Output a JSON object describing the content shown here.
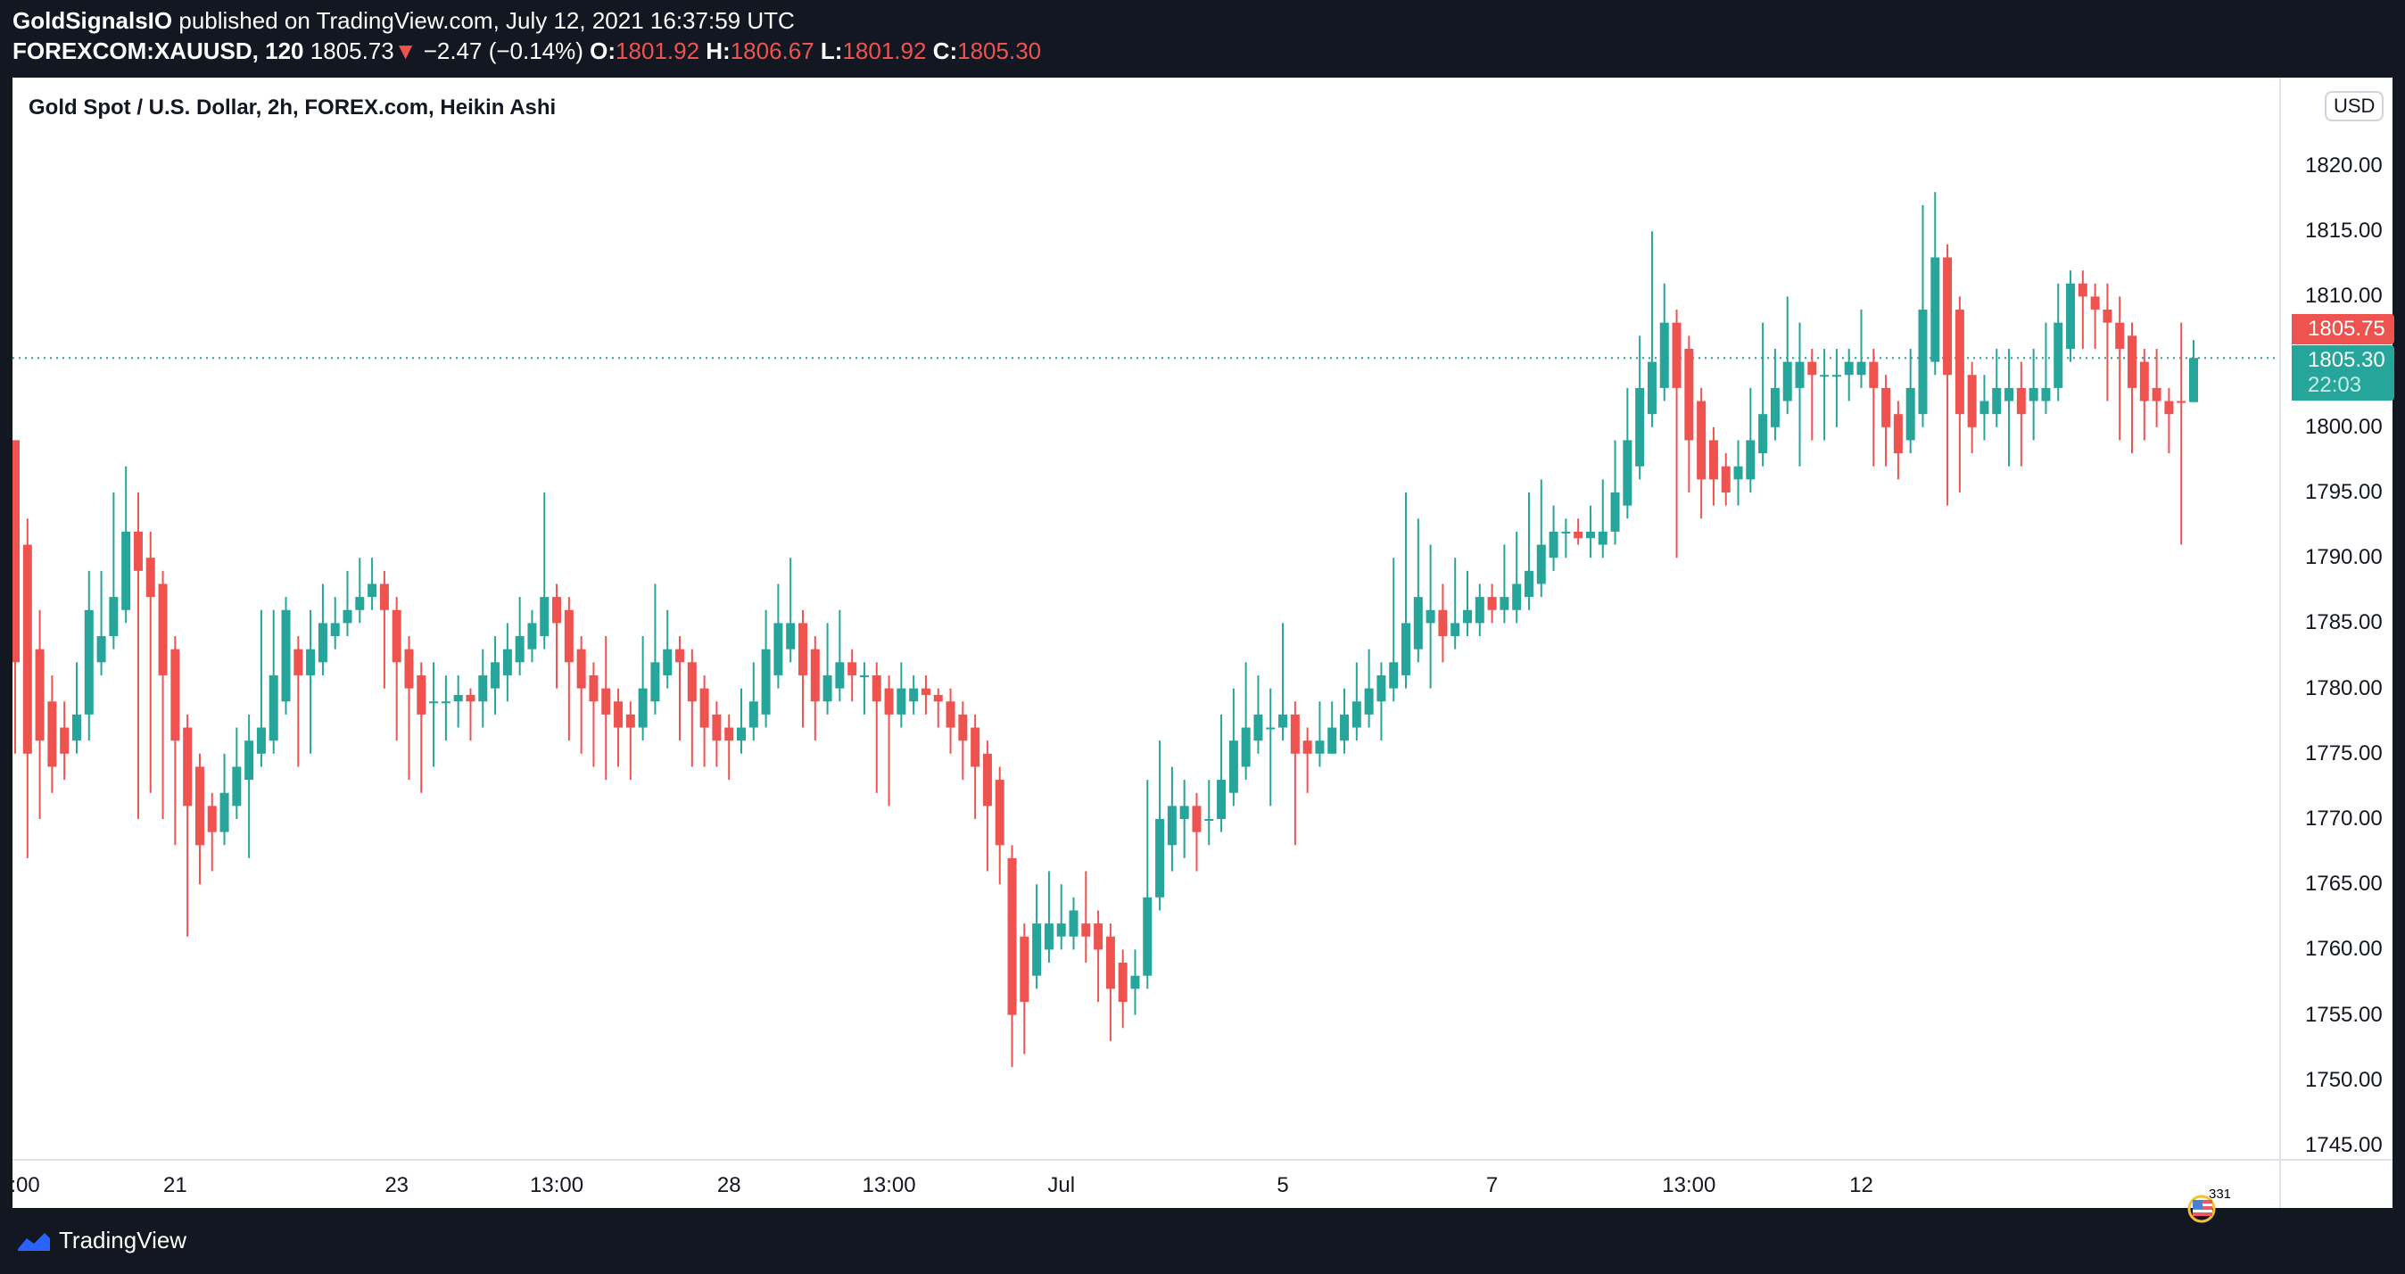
{
  "header": {
    "author": "GoldSignalsIO",
    "published": "published on TradingView.com, July 12, 2021 16:37:59 UTC",
    "symbol": "FOREXCOM:XAUUSD, 120",
    "last": "1805.73",
    "change": "−2.47 (−0.14%)",
    "o_label": "O:",
    "o": "1801.92",
    "h_label": "H:",
    "h": "1806.67",
    "l_label": "L:",
    "l": "1801.92",
    "c_label": "C:",
    "c": "1805.30"
  },
  "chart_title": "Gold Spot / U.S. Dollar, 2h, FOREX.com, Heikin Ashi",
  "currency": "USD",
  "price_boxes": {
    "last": "1805.75",
    "current": "1805.30",
    "countdown": "22:03"
  },
  "event_badge": "331",
  "footer": {
    "brand": "TradingView"
  },
  "colors": {
    "up": "#26a69a",
    "down": "#ef5350",
    "background": "#131722"
  },
  "chart_data": {
    "type": "candlestick",
    "title": "Gold Spot / U.S. Dollar, 2h, FOREX.com, Heikin Ashi",
    "ylim": [
      1743,
      1826
    ],
    "y_ticks": [
      "1820.00",
      "1815.00",
      "1810.00",
      "1800.00",
      "1795.00",
      "1790.00",
      "1785.00",
      "1780.00",
      "1775.00",
      "1770.00",
      "1765.00",
      "1760.00",
      "1755.00",
      "1750.00",
      "1745.00"
    ],
    "y_tick_values": [
      1820,
      1815,
      1810,
      1800,
      1795,
      1790,
      1785,
      1780,
      1775,
      1770,
      1765,
      1760,
      1755,
      1750,
      1745
    ],
    "x_ticks": [
      ":00",
      "21",
      "23",
      "13:00",
      "28",
      "13:00",
      "Jul",
      "5",
      "7",
      "13:00",
      "12"
    ],
    "x_tick_candle_index": [
      0,
      13,
      31,
      44,
      58,
      71,
      85,
      103,
      120,
      136,
      150
    ],
    "current_price": 1805.3,
    "candles": [
      [
        1799,
        1799,
        1775,
        1782
      ],
      [
        1791,
        1793,
        1767,
        1775
      ],
      [
        1783,
        1786,
        1770,
        1776
      ],
      [
        1779,
        1781,
        1772,
        1774
      ],
      [
        1777,
        1779,
        1773,
        1775
      ],
      [
        1776,
        1782,
        1775,
        1778
      ],
      [
        1778,
        1789,
        1776,
        1786
      ],
      [
        1782,
        1789,
        1781,
        1784
      ],
      [
        1784,
        1795,
        1783,
        1787
      ],
      [
        1786,
        1797,
        1785,
        1792
      ],
      [
        1792,
        1795,
        1770,
        1789
      ],
      [
        1790,
        1792,
        1772,
        1787
      ],
      [
        1788,
        1789,
        1770,
        1781
      ],
      [
        1783,
        1784,
        1768,
        1776
      ],
      [
        1777,
        1778,
        1761,
        1771
      ],
      [
        1774,
        1775,
        1765,
        1768
      ],
      [
        1771,
        1772,
        1766,
        1769
      ],
      [
        1769,
        1775,
        1768,
        1772
      ],
      [
        1771,
        1777,
        1770,
        1774
      ],
      [
        1773,
        1778,
        1767,
        1776
      ],
      [
        1775,
        1786,
        1774,
        1777
      ],
      [
        1776,
        1786,
        1775,
        1781
      ],
      [
        1779,
        1787,
        1778,
        1786
      ],
      [
        1783,
        1784,
        1774,
        1781
      ],
      [
        1781,
        1786,
        1775,
        1783
      ],
      [
        1782,
        1788,
        1781,
        1785
      ],
      [
        1784,
        1787,
        1783,
        1785
      ],
      [
        1785,
        1789,
        1784,
        1786
      ],
      [
        1786,
        1790,
        1785,
        1787
      ],
      [
        1787,
        1790,
        1786,
        1788
      ],
      [
        1788,
        1789,
        1780,
        1786
      ],
      [
        1786,
        1787,
        1776,
        1782
      ],
      [
        1783,
        1784,
        1773,
        1780
      ],
      [
        1781,
        1782,
        1772,
        1778
      ],
      [
        1779,
        1782,
        1774,
        1779
      ],
      [
        1779,
        1781,
        1776,
        1779
      ],
      [
        1779,
        1781,
        1777,
        1779.5
      ],
      [
        1779.5,
        1780,
        1776,
        1779
      ],
      [
        1779,
        1783,
        1777,
        1781
      ],
      [
        1780,
        1784,
        1778,
        1782
      ],
      [
        1781,
        1785,
        1779,
        1783
      ],
      [
        1782,
        1787,
        1781,
        1784
      ],
      [
        1783,
        1786,
        1782,
        1785
      ],
      [
        1784,
        1795,
        1783,
        1787
      ],
      [
        1787,
        1788,
        1780,
        1785
      ],
      [
        1786,
        1787,
        1776,
        1782
      ],
      [
        1783,
        1784,
        1775,
        1780
      ],
      [
        1781,
        1782,
        1774,
        1779
      ],
      [
        1780,
        1784,
        1773,
        1778
      ],
      [
        1779,
        1780,
        1774,
        1777
      ],
      [
        1778,
        1779,
        1773,
        1777
      ],
      [
        1777,
        1784,
        1776,
        1780
      ],
      [
        1779,
        1788,
        1778,
        1782
      ],
      [
        1781,
        1786,
        1780,
        1783
      ],
      [
        1783,
        1784,
        1776,
        1782
      ],
      [
        1782,
        1783,
        1774,
        1779
      ],
      [
        1780,
        1781,
        1774,
        1777
      ],
      [
        1778,
        1779,
        1774,
        1776
      ],
      [
        1777,
        1778,
        1773,
        1776
      ],
      [
        1776,
        1780,
        1775,
        1777
      ],
      [
        1777,
        1782,
        1776,
        1779
      ],
      [
        1778,
        1786,
        1777,
        1783
      ],
      [
        1781,
        1788,
        1780,
        1785
      ],
      [
        1783,
        1790,
        1782,
        1785
      ],
      [
        1785,
        1786,
        1777,
        1781
      ],
      [
        1783,
        1784,
        1776,
        1779
      ],
      [
        1779,
        1785,
        1778,
        1781
      ],
      [
        1780,
        1786,
        1779,
        1782
      ],
      [
        1782,
        1783,
        1779,
        1781
      ],
      [
        1781,
        1782,
        1778,
        1781
      ],
      [
        1781,
        1782,
        1772,
        1779
      ],
      [
        1780,
        1781,
        1771,
        1778
      ],
      [
        1778,
        1782,
        1777,
        1780
      ],
      [
        1779,
        1781,
        1778,
        1780
      ],
      [
        1780,
        1781,
        1778,
        1779.5
      ],
      [
        1779.5,
        1780,
        1777,
        1779
      ],
      [
        1779,
        1780,
        1775,
        1777
      ],
      [
        1778,
        1779,
        1773,
        1776
      ],
      [
        1777,
        1778,
        1770,
        1774
      ],
      [
        1775,
        1776,
        1766,
        1771
      ],
      [
        1773,
        1774,
        1765,
        1768
      ],
      [
        1767,
        1768,
        1751,
        1755
      ],
      [
        1761,
        1762,
        1752,
        1756
      ],
      [
        1758,
        1765,
        1757,
        1762
      ],
      [
        1760,
        1766,
        1759,
        1762
      ],
      [
        1761,
        1765,
        1760,
        1762
      ],
      [
        1761,
        1764,
        1760,
        1763
      ],
      [
        1762,
        1766,
        1759,
        1761
      ],
      [
        1762,
        1763,
        1756,
        1760
      ],
      [
        1761,
        1762,
        1753,
        1757
      ],
      [
        1759,
        1760,
        1754,
        1756
      ],
      [
        1757,
        1760,
        1755,
        1758
      ],
      [
        1758,
        1773,
        1757,
        1764
      ],
      [
        1764,
        1776,
        1763,
        1770
      ],
      [
        1768,
        1774,
        1766,
        1771
      ],
      [
        1770,
        1773,
        1767,
        1771
      ],
      [
        1771,
        1772,
        1766,
        1769
      ],
      [
        1770,
        1773,
        1768,
        1770
      ],
      [
        1770,
        1778,
        1769,
        1773
      ],
      [
        1772,
        1780,
        1771,
        1776
      ],
      [
        1774,
        1782,
        1773,
        1777
      ],
      [
        1776,
        1781,
        1775,
        1778
      ],
      [
        1777,
        1780,
        1771,
        1777
      ],
      [
        1777,
        1785,
        1776,
        1778
      ],
      [
        1778,
        1779,
        1768,
        1775
      ],
      [
        1776,
        1777,
        1772,
        1775
      ],
      [
        1775,
        1779,
        1774,
        1776
      ],
      [
        1775,
        1779,
        1775,
        1777
      ],
      [
        1776,
        1780,
        1775,
        1778
      ],
      [
        1777,
        1782,
        1776,
        1779
      ],
      [
        1778,
        1783,
        1777,
        1780
      ],
      [
        1779,
        1782,
        1776,
        1781
      ],
      [
        1780,
        1790,
        1779,
        1782
      ],
      [
        1781,
        1795,
        1780,
        1785
      ],
      [
        1783,
        1793,
        1782,
        1787
      ],
      [
        1785,
        1791,
        1780,
        1786
      ],
      [
        1786,
        1788,
        1782,
        1784
      ],
      [
        1784,
        1790,
        1783,
        1785
      ],
      [
        1785,
        1789,
        1784,
        1786
      ],
      [
        1785,
        1788,
        1784,
        1787
      ],
      [
        1787,
        1788,
        1785,
        1786
      ],
      [
        1786,
        1791,
        1785,
        1787
      ],
      [
        1786,
        1792,
        1785,
        1788
      ],
      [
        1787,
        1795,
        1786,
        1789
      ],
      [
        1788,
        1796,
        1787,
        1791
      ],
      [
        1790,
        1794,
        1789,
        1792
      ],
      [
        1792,
        1793,
        1790,
        1792
      ],
      [
        1792,
        1793,
        1791,
        1791.5
      ],
      [
        1791.5,
        1794,
        1790,
        1792
      ],
      [
        1791,
        1796,
        1790,
        1792
      ],
      [
        1792,
        1799,
        1791,
        1795
      ],
      [
        1794,
        1803,
        1793,
        1799
      ],
      [
        1797,
        1807,
        1796,
        1803
      ],
      [
        1801,
        1815,
        1800,
        1805
      ],
      [
        1803,
        1811,
        1802,
        1808
      ],
      [
        1808,
        1809,
        1790,
        1803
      ],
      [
        1806,
        1807,
        1795,
        1799
      ],
      [
        1802,
        1803,
        1793,
        1796
      ],
      [
        1799,
        1800,
        1794,
        1796
      ],
      [
        1797,
        1798,
        1794,
        1795
      ],
      [
        1796,
        1799,
        1794,
        1797
      ],
      [
        1796,
        1803,
        1795,
        1799
      ],
      [
        1798,
        1808,
        1797,
        1801
      ],
      [
        1800,
        1806,
        1799,
        1803
      ],
      [
        1802,
        1810,
        1801,
        1805
      ],
      [
        1803,
        1808,
        1797,
        1805
      ],
      [
        1805,
        1806,
        1799,
        1804
      ],
      [
        1804,
        1806,
        1799,
        1804
      ],
      [
        1804,
        1806,
        1800,
        1804
      ],
      [
        1804,
        1806,
        1802,
        1805
      ],
      [
        1804,
        1809,
        1803,
        1805
      ],
      [
        1805,
        1806,
        1797,
        1803
      ],
      [
        1803,
        1804,
        1797,
        1800
      ],
      [
        1801,
        1802,
        1796,
        1798
      ],
      [
        1799,
        1806,
        1798,
        1803
      ],
      [
        1801,
        1817,
        1800,
        1809
      ],
      [
        1805,
        1818,
        1804,
        1813
      ],
      [
        1813,
        1814,
        1794,
        1804
      ],
      [
        1809,
        1810,
        1795,
        1801
      ],
      [
        1804,
        1805,
        1798,
        1800
      ],
      [
        1801,
        1804,
        1799,
        1802
      ],
      [
        1801,
        1806,
        1800,
        1803
      ],
      [
        1802,
        1806,
        1797,
        1803
      ],
      [
        1803,
        1805,
        1797,
        1801
      ],
      [
        1802,
        1806,
        1799,
        1803
      ],
      [
        1802,
        1808,
        1801,
        1803
      ],
      [
        1803,
        1811,
        1802,
        1808
      ],
      [
        1806,
        1812,
        1805,
        1811
      ],
      [
        1811,
        1812,
        1806,
        1810
      ],
      [
        1810,
        1811,
        1806,
        1809
      ],
      [
        1809,
        1811,
        1802,
        1808
      ],
      [
        1808,
        1810,
        1799,
        1806
      ],
      [
        1807,
        1808,
        1798,
        1803
      ],
      [
        1805,
        1806,
        1799,
        1802
      ],
      [
        1803,
        1806,
        1800,
        1802
      ],
      [
        1802,
        1803,
        1798,
        1801
      ],
      [
        1802,
        1808,
        1791,
        1801.9
      ],
      [
        1801.92,
        1806.67,
        1801.92,
        1805.3
      ]
    ]
  }
}
